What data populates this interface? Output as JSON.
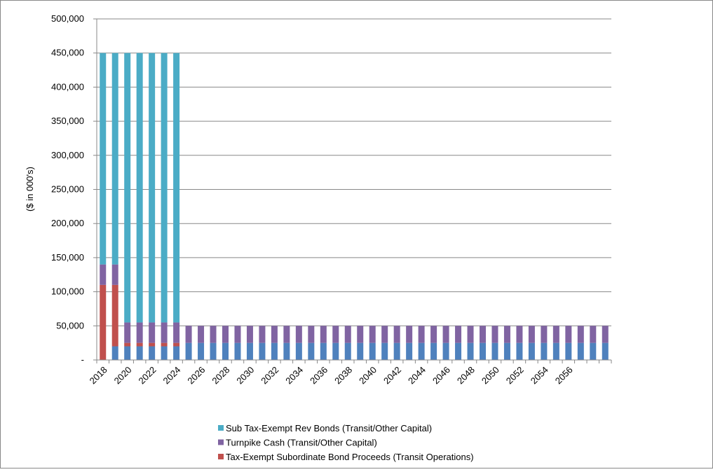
{
  "chart_data": {
    "type": "stacked-bar",
    "y_label": "($ in 000's)",
    "categories": [
      "2018",
      null,
      "2020",
      null,
      "2022",
      null,
      "2024",
      null,
      "2026",
      null,
      "2028",
      null,
      "2030",
      null,
      "2032",
      null,
      "2034",
      null,
      "2036",
      null,
      "2038",
      null,
      "2040",
      null,
      "2042",
      null,
      "2044",
      null,
      "2046",
      null,
      "2048",
      null,
      "2050",
      null,
      "2052",
      null,
      "2054",
      null,
      "2056",
      null,
      null,
      null
    ],
    "series": [
      {
        "color": "#4f81bd",
        "values": [
          0,
          20000,
          20000,
          20000,
          20000,
          20000,
          20000,
          25000,
          25000,
          25000,
          25000,
          25000,
          25000,
          25000,
          25000,
          25000,
          25000,
          25000,
          25000,
          25000,
          25000,
          25000,
          25000,
          25000,
          25000,
          25000,
          25000,
          25000,
          25000,
          25000,
          25000,
          25000,
          25000,
          25000,
          25000,
          25000,
          25000,
          25000,
          25000,
          25000,
          25000,
          25000
        ]
      },
      {
        "name": "Tax-Exempt Subordinate Bond Proceeds (Transit Operations)",
        "color": "#c0504d",
        "values": [
          110000,
          90000,
          5000,
          5000,
          5000,
          5000,
          5000,
          0,
          0,
          0,
          0,
          0,
          0,
          0,
          0,
          0,
          0,
          0,
          0,
          0,
          0,
          0,
          0,
          0,
          0,
          0,
          0,
          0,
          0,
          0,
          0,
          0,
          0,
          0,
          0,
          0,
          0,
          0,
          0,
          0,
          0,
          0
        ]
      },
      {
        "name": "Turnpike Cash (Transit/Other Capital)",
        "color": "#8064a2",
        "values": [
          30000,
          30000,
          30000,
          30000,
          30000,
          30000,
          30000,
          25000,
          25000,
          25000,
          25000,
          25000,
          25000,
          25000,
          25000,
          25000,
          25000,
          25000,
          25000,
          25000,
          25000,
          25000,
          25000,
          25000,
          25000,
          25000,
          25000,
          25000,
          25000,
          25000,
          25000,
          25000,
          25000,
          25000,
          25000,
          25000,
          25000,
          25000,
          25000,
          25000,
          25000,
          25000
        ]
      },
      {
        "name": "Sub Tax-Exempt Rev Bonds (Transit/Other Capital)",
        "color": "#4bacc6",
        "values": [
          310000,
          310000,
          395000,
          395000,
          395000,
          395000,
          395000,
          0,
          0,
          0,
          0,
          0,
          0,
          0,
          0,
          0,
          0,
          0,
          0,
          0,
          0,
          0,
          0,
          0,
          0,
          0,
          0,
          0,
          0,
          0,
          0,
          0,
          0,
          0,
          0,
          0,
          0,
          0,
          0,
          0,
          0,
          0
        ]
      }
    ],
    "legend_order": [
      3,
      2,
      1
    ],
    "ylim": [
      0,
      500000
    ],
    "yticks": [
      {
        "value": 0,
        "label": "-"
      },
      {
        "value": 50000,
        "label": "50,000"
      },
      {
        "value": 100000,
        "label": "100,000"
      },
      {
        "value": 150000,
        "label": "150,000"
      },
      {
        "value": 200000,
        "label": "200,000"
      },
      {
        "value": 250000,
        "label": "250,000"
      },
      {
        "value": 300000,
        "label": "300,000"
      },
      {
        "value": 350000,
        "label": "350,000"
      },
      {
        "value": 400000,
        "label": "400,000"
      },
      {
        "value": 450000,
        "label": "450,000"
      },
      {
        "value": 500000,
        "label": "500,000"
      }
    ],
    "grid": true
  }
}
